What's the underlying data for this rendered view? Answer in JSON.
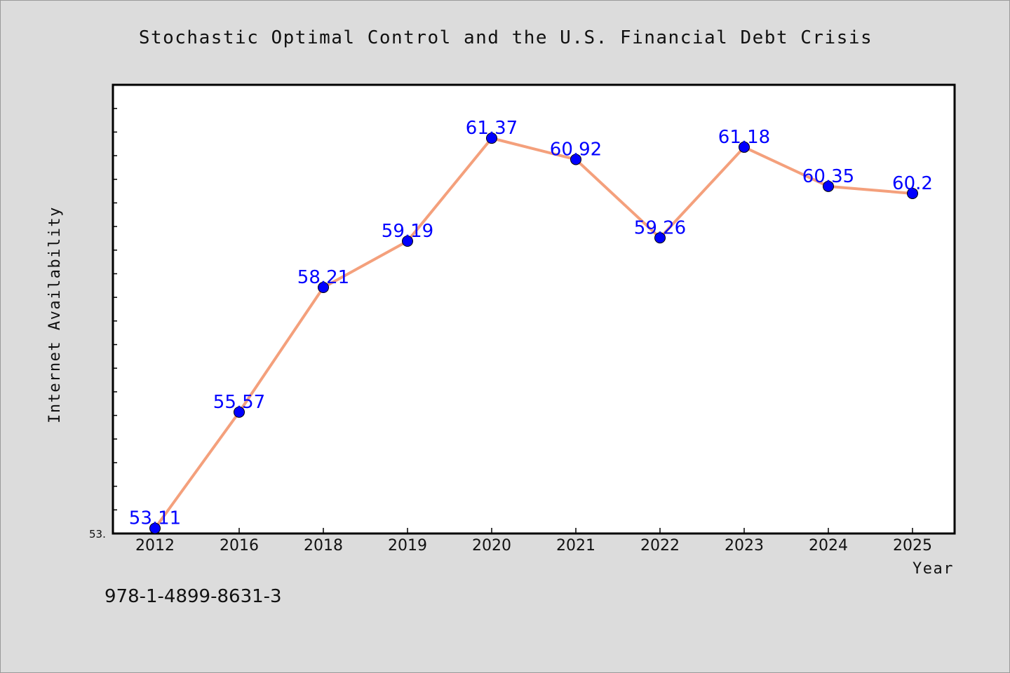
{
  "chart_data": {
    "type": "line",
    "title": "Stochastic Optimal Control and the U.S. Financial Debt Crisis",
    "xlabel": "Year",
    "ylabel": "Internet Availability",
    "categories": [
      "2012",
      "2016",
      "2018",
      "2019",
      "2020",
      "2021",
      "2022",
      "2023",
      "2024",
      "2025"
    ],
    "series": [
      {
        "values": [
          53.11,
          55.57,
          58.21,
          59.19,
          61.37,
          60.92,
          59.26,
          61.18,
          60.35,
          60.2
        ],
        "data_labels": [
          "53.11",
          "55.57",
          "58.21",
          "59.19",
          "61.37",
          "60.92",
          "59.26",
          "61.18",
          "60.35",
          "60.2"
        ],
        "line_color": "#f4a07c",
        "marker_color": "#0000ff"
      }
    ],
    "ylim": [
      53.0,
      62.5
    ],
    "y_tick_label": "53.",
    "grid": false,
    "legend": "none"
  },
  "footer": {
    "isbn": "978-1-4899-8631-3"
  },
  "colors": {
    "background": "#dcdcdc",
    "plot_background": "#ffffff",
    "line": "#f4a07c",
    "marker": "#0000ff",
    "data_label": "#0000ff"
  }
}
